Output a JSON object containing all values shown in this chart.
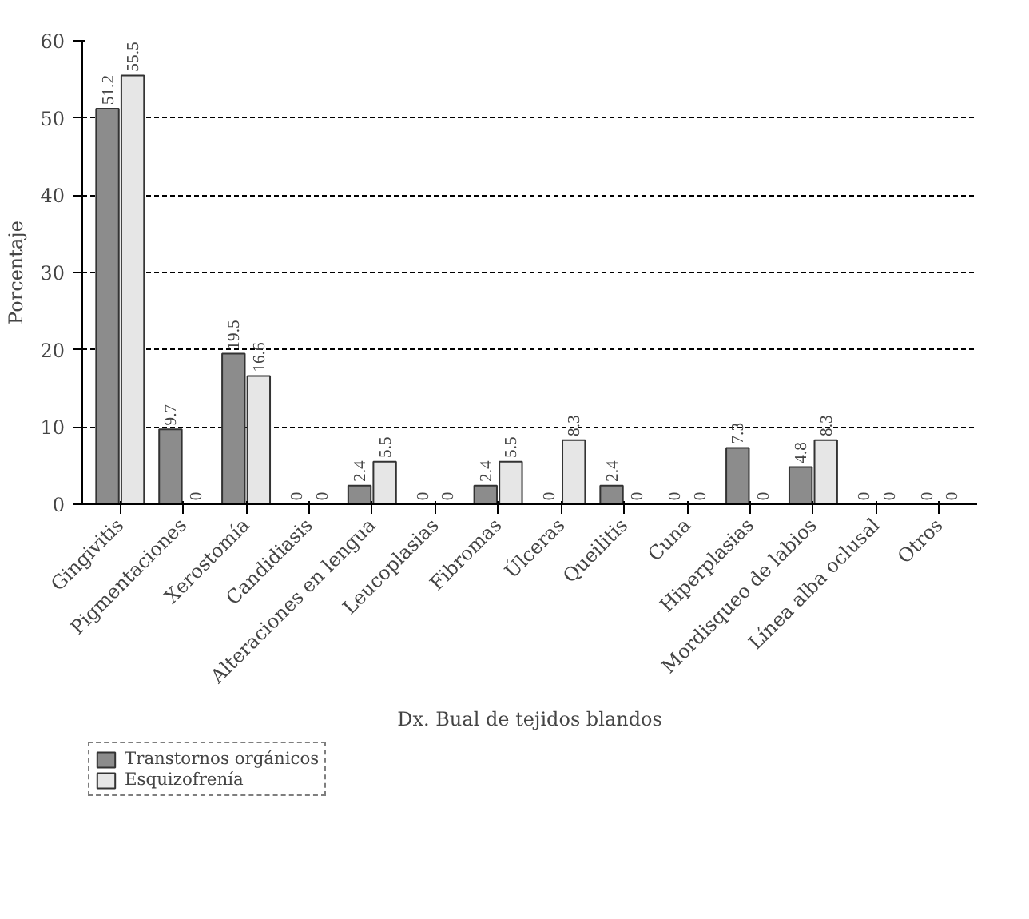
{
  "chart_data": {
    "type": "bar",
    "xlabel": "Dx. Bual de tejidos blandos",
    "ylabel": "Porcentaje",
    "categories": [
      "Gingivitis",
      "Pigmentaciones",
      "Xerostomía",
      "Candidiasis",
      "Alteraciones en lengua",
      "Leucoplasias",
      "Fibromas",
      "Úlceras",
      "Queilitis",
      "Cuna",
      "Hiperplasias",
      "Mordisqueo de labios",
      "Línea alba oclusal",
      "Otros"
    ],
    "series": [
      {
        "name": "Transtornos orgánicos",
        "color": "#8c8c8c",
        "values": [
          51.2,
          9.7,
          19.5,
          0,
          2.4,
          0,
          2.4,
          0,
          2.4,
          0,
          7.3,
          4.8,
          0,
          0
        ]
      },
      {
        "name": "Esquizofrenía",
        "color": "#e6e6e6",
        "values": [
          55.5,
          0,
          16.6,
          0,
          5.5,
          0,
          5.5,
          8.3,
          0,
          0,
          0,
          8.3,
          0,
          0
        ]
      }
    ],
    "ylim": [
      0,
      60
    ],
    "yticks": [
      0,
      10,
      20,
      30,
      40,
      50,
      60
    ],
    "grid": "y",
    "legend": "bottom left",
    "data_labels": true
  }
}
